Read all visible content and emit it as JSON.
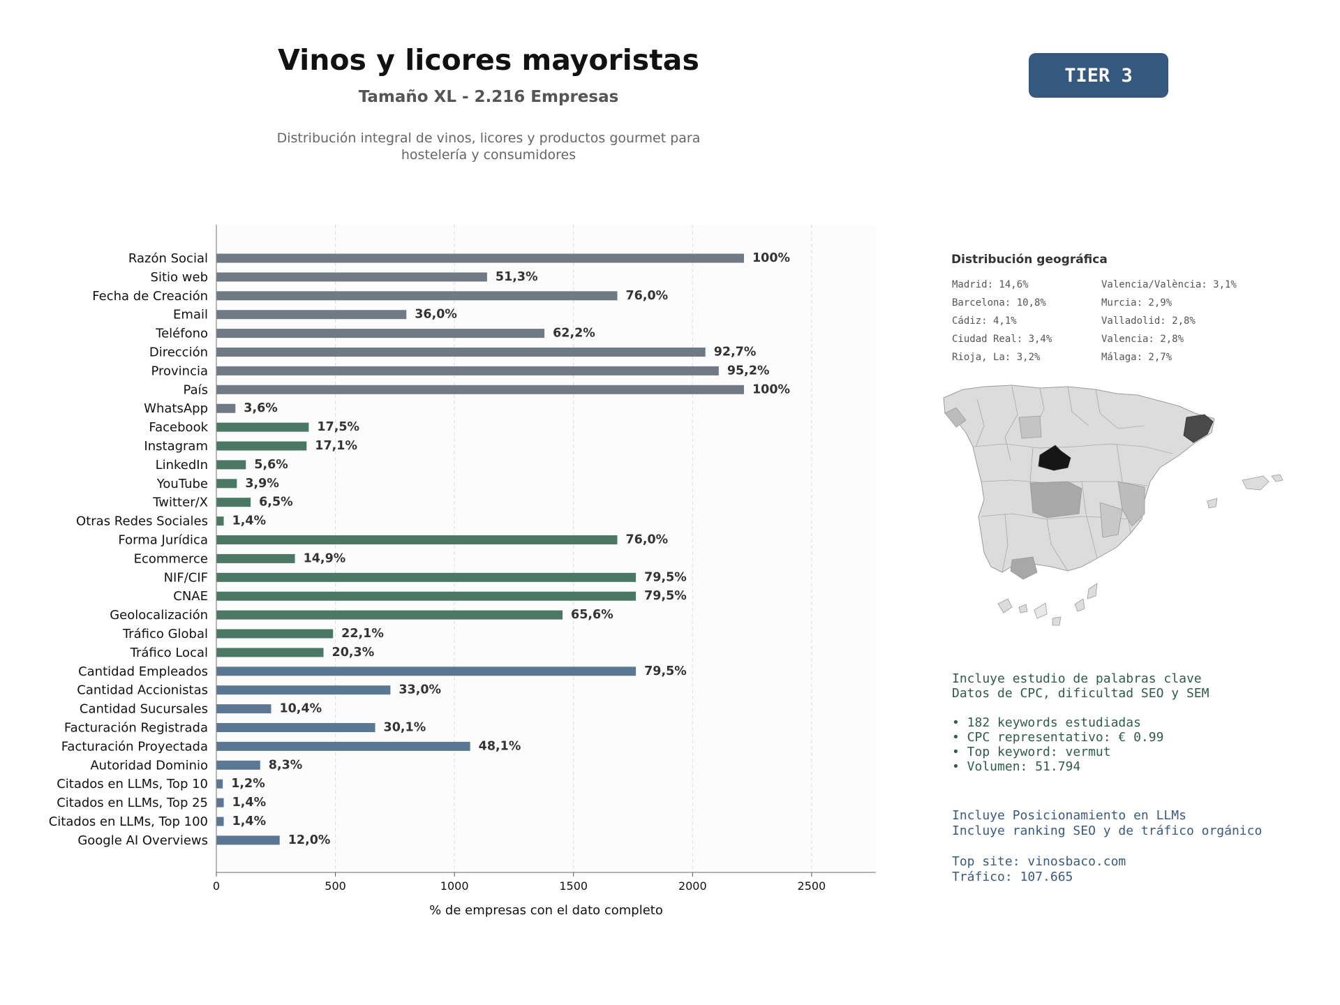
{
  "header": {
    "title": "Vinos y licores mayoristas",
    "subtitle": "Tamaño XL - 2.216 Empresas",
    "description_line1": "Distribución integral de vinos, licores y productos gourmet para",
    "description_line2": "hostelería y consumidores",
    "tier_label": "TIER 3"
  },
  "chart_data": {
    "type": "bar",
    "orientation": "horizontal",
    "xlabel": "% de empresas con el dato completo",
    "xlim": [
      0,
      2770
    ],
    "xticks": [
      0,
      500,
      1000,
      1500,
      2000,
      2500
    ],
    "grid": true,
    "total": 2216,
    "series_colors": {
      "general": "#6f7a85",
      "digital": "#4a7864",
      "financial": "#5a7894"
    },
    "categories": [
      "Razón Social",
      "Sitio web",
      "Fecha de Creación",
      "Email",
      "Teléfono",
      "Dirección",
      "Provincia",
      "País",
      "WhatsApp",
      "Facebook",
      "Instagram",
      "LinkedIn",
      "YouTube",
      "Twitter/X",
      "Otras Redes Sociales",
      "Forma Jurídica",
      "Ecommerce",
      "NIF/CIF",
      "CNAE",
      "Geolocalización",
      "Tráfico Global",
      "Tráfico Local",
      "Cantidad Empleados",
      "Cantidad Accionistas",
      "Cantidad Sucursales",
      "Facturación Registrada",
      "Facturación Proyectada",
      "Autoridad Dominio",
      "Citados en LLMs, Top 10",
      "Citados en LLMs, Top 25",
      "Citados en LLMs, Top 100",
      "Google AI Overviews"
    ],
    "values": [
      2216,
      1137,
      1684,
      798,
      1378,
      2054,
      2110,
      2216,
      80,
      388,
      379,
      124,
      86,
      144,
      31,
      1684,
      330,
      1762,
      1762,
      1454,
      490,
      450,
      1762,
      731,
      230,
      667,
      1066,
      184,
      27,
      31,
      31,
      266
    ],
    "labels": [
      "100%",
      "51,3%",
      "76,0%",
      "36,0%",
      "62,2%",
      "92,7%",
      "95,2%",
      "100%",
      "3,6%",
      "17,5%",
      "17,1%",
      "5,6%",
      "3,9%",
      "6,5%",
      "1,4%",
      "76,0%",
      "14,9%",
      "79,5%",
      "79,5%",
      "65,6%",
      "22,1%",
      "20,3%",
      "79,5%",
      "33,0%",
      "10,4%",
      "30,1%",
      "48,1%",
      "8,3%",
      "1,2%",
      "1,4%",
      "1,4%",
      "12,0%"
    ],
    "groups": [
      "general",
      "general",
      "general",
      "general",
      "general",
      "general",
      "general",
      "general",
      "general",
      "digital",
      "digital",
      "digital",
      "digital",
      "digital",
      "digital",
      "digital",
      "digital",
      "digital",
      "digital",
      "digital",
      "digital",
      "digital",
      "financial",
      "financial",
      "financial",
      "financial",
      "financial",
      "financial",
      "financial",
      "financial",
      "financial",
      "financial"
    ]
  },
  "geo": {
    "title": "Distribución geográfica",
    "col1": [
      "Madrid: 14,6%",
      "Barcelona: 10,8%",
      "Cádiz: 4,1%",
      "Ciudad Real: 3,4%",
      "Rioja, La: 3,2%"
    ],
    "col2": [
      "Valencia/València: 3,1%",
      "Murcia: 2,9%",
      "Valladolid: 2,8%",
      "Valencia: 2,8%",
      "Málaga: 2,7%"
    ]
  },
  "keywords": {
    "line1": "Incluye estudio de palabras clave",
    "line2": "Datos de CPC, dificultad SEO y SEM",
    "bullet1": "• 182 keywords estudiadas",
    "bullet2": "• CPC representativo: € 0.99",
    "bullet3": "• Top keyword: vermut",
    "bullet4": "• Volumen: 51.794"
  },
  "llm": {
    "line1": "Incluye Posicionamiento en LLMs",
    "line2": "Incluye ranking SEO y de tráfico orgánico",
    "top_site": "Top site: vinosbaco.com",
    "traffic": "Tráfico: 107.665"
  },
  "map_colors": {
    "madrid": "#161616",
    "barcelona": "#4a4a4a",
    "mid": "#a8a8a8",
    "light": "#dcdcdc",
    "lighter": "#e8e8e8"
  }
}
